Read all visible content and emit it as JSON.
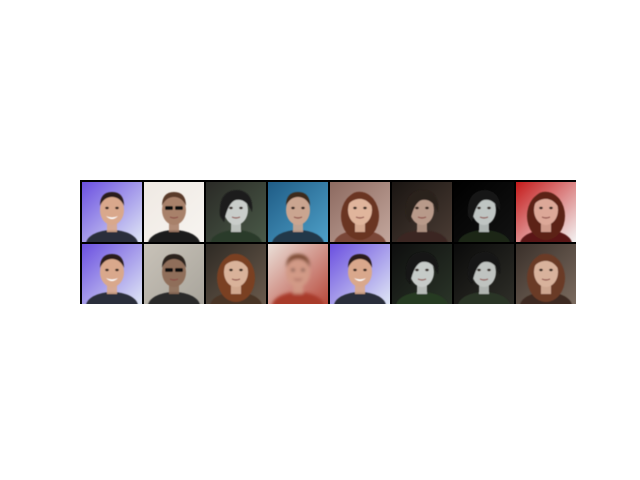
{
  "grid": {
    "rows": 2,
    "columns": 8,
    "tiles": [
      {
        "row": 0,
        "col": 0,
        "bg": [
          "#6a4fe0",
          "#dfe6f5"
        ],
        "hair": "#2a1f1a",
        "skin": "#d9a88c",
        "style": "short-smile",
        "clothes": "#2b2f3a"
      },
      {
        "row": 0,
        "col": 1,
        "bg": [
          "#efe9e3",
          "#f7f4f0"
        ],
        "hair": "#5a3b2c",
        "skin": "#a8816a",
        "style": "sunglasses",
        "clothes": "#1d1d1d"
      },
      {
        "row": 0,
        "col": 2,
        "bg": [
          "#2a2a26",
          "#4a5a48"
        ],
        "hair": "#1b1b1b",
        "skin": "#c9cdca",
        "style": "dark-pale",
        "clothes": "#2c3a2a"
      },
      {
        "row": 0,
        "col": 3,
        "bg": [
          "#1f5c86",
          "#4ea0c8"
        ],
        "hair": "#3d2a1c",
        "skin": "#caa590",
        "style": "short-neutral",
        "clothes": "#243848"
      },
      {
        "row": 0,
        "col": 4,
        "bg": [
          "#8d6a60",
          "#c3a79d"
        ],
        "hair": "#6a3424",
        "skin": "#e0b59c",
        "style": "long-hair",
        "clothes": "#7a4638"
      },
      {
        "row": 0,
        "col": 5,
        "bg": [
          "#1a1512",
          "#4a3c34"
        ],
        "hair": "#2a201a",
        "skin": "#b89a8a",
        "style": "dark-pale",
        "clothes": "#3a2622"
      },
      {
        "row": 0,
        "col": 6,
        "bg": [
          "#000000",
          "#121212"
        ],
        "hair": "#161616",
        "skin": "#bfc5c3",
        "style": "dark-pale",
        "clothes": "#1a2618"
      },
      {
        "row": 0,
        "col": 7,
        "bg": [
          "#c51a1a",
          "#f3f3f3"
        ],
        "hair": "#5c2418",
        "skin": "#dca898",
        "style": "long-hair",
        "clothes": "#5a1414"
      },
      {
        "row": 1,
        "col": 0,
        "bg": [
          "#6a4fe0",
          "#dfe6f5"
        ],
        "hair": "#2a1f1a",
        "skin": "#d9a88c",
        "style": "short-smile",
        "clothes": "#2b2f3a"
      },
      {
        "row": 1,
        "col": 1,
        "bg": [
          "#c8c2b8",
          "#a9a59c"
        ],
        "hair": "#2a201c",
        "skin": "#8f6e5a",
        "style": "sunglasses",
        "clothes": "#2c2c2c"
      },
      {
        "row": 1,
        "col": 2,
        "bg": [
          "#2e2a24",
          "#6a5a4c"
        ],
        "hair": "#7a4024",
        "skin": "#d9b29a",
        "style": "long-hair",
        "clothes": "#4a3628"
      },
      {
        "row": 1,
        "col": 3,
        "bg": [
          "#eadfd8",
          "#b84a3c"
        ],
        "hair": "#7a4a30",
        "skin": "#d29a86",
        "style": "blurry",
        "clothes": "#a83a2c"
      },
      {
        "row": 1,
        "col": 4,
        "bg": [
          "#6a4fe0",
          "#dfe6f5"
        ],
        "hair": "#2a1f1a",
        "skin": "#d9a88c",
        "style": "short-smile",
        "clothes": "#2b2f3a"
      },
      {
        "row": 1,
        "col": 5,
        "bg": [
          "#0e0e0e",
          "#2a3428"
        ],
        "hair": "#121212",
        "skin": "#c6cbc8",
        "style": "dark-pale",
        "clothes": "#263a24"
      },
      {
        "row": 1,
        "col": 6,
        "bg": [
          "#0a0a0a",
          "#2e2e28"
        ],
        "hair": "#151515",
        "skin": "#bfc3c0",
        "style": "dark-pale",
        "clothes": "#2a3626"
      },
      {
        "row": 1,
        "col": 7,
        "bg": [
          "#3a302a",
          "#7a6a5e"
        ],
        "hair": "#6a3a26",
        "skin": "#d8b29c",
        "style": "long-hair",
        "clothes": "#3c2c22"
      }
    ]
  }
}
